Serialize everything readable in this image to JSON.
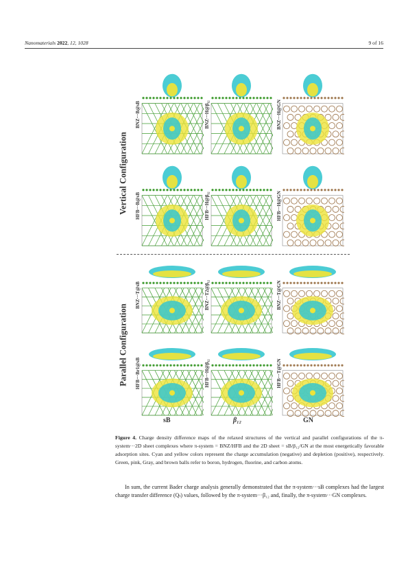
{
  "header": {
    "journal": "Nanomaterials",
    "year": "2022",
    "vol_pages": ", 12, 1028",
    "page": "9 of 16"
  },
  "figure": {
    "sections": [
      "Vertical Configuration",
      "Parallel Configuration"
    ],
    "row_labels": [
      [
        "BNZ···B@sB",
        "BNZ···H@β₁₂",
        "BNZ···H@GN"
      ],
      [
        "HFB···B@sB",
        "HFB···H@β₁₂",
        "HFB···H@GN"
      ],
      [
        "BNZ···T@sB",
        "BNZ···T2@β₁₂",
        "BNZ···T@GN"
      ],
      [
        "HFB···Br1@sB",
        "HFB···H@β₁₂",
        "HFB···T@GN"
      ]
    ],
    "columns": [
      "sB",
      "β₁₂",
      "GN"
    ],
    "colors": {
      "cyan": "#37c7cf",
      "yellow": "#ece33a",
      "boron": "#3f9b2f",
      "carbon": "#a07a52",
      "hydrogen": "#e8b4c8",
      "fluorine": "#9a9a9a"
    }
  },
  "caption": {
    "label": "Figure 4.",
    "text": "Charge density difference maps of the relaxed structures of the vertical and parallel configurations of the π-system···2D sheet complexes where π-system = BNZ/HFB and the 2D sheet = sB/β₁₂/GN at the most energetically favorable adsorption sites. Cyan and yellow colors represent the charge accumulation (negative) and depletion (positive), respectively. Green, pink, Gray, and brown balls refer to boron, hydrogen, fluorine, and carbon atoms."
  },
  "paragraph": "In sum, the current Bader charge analysis generally demonstrated that the π-system···sB complexes had the largest charge transfer difference (Qₜ) values, followed by the π-system···β₁₂ and, finally, the π-system···GN complexes."
}
